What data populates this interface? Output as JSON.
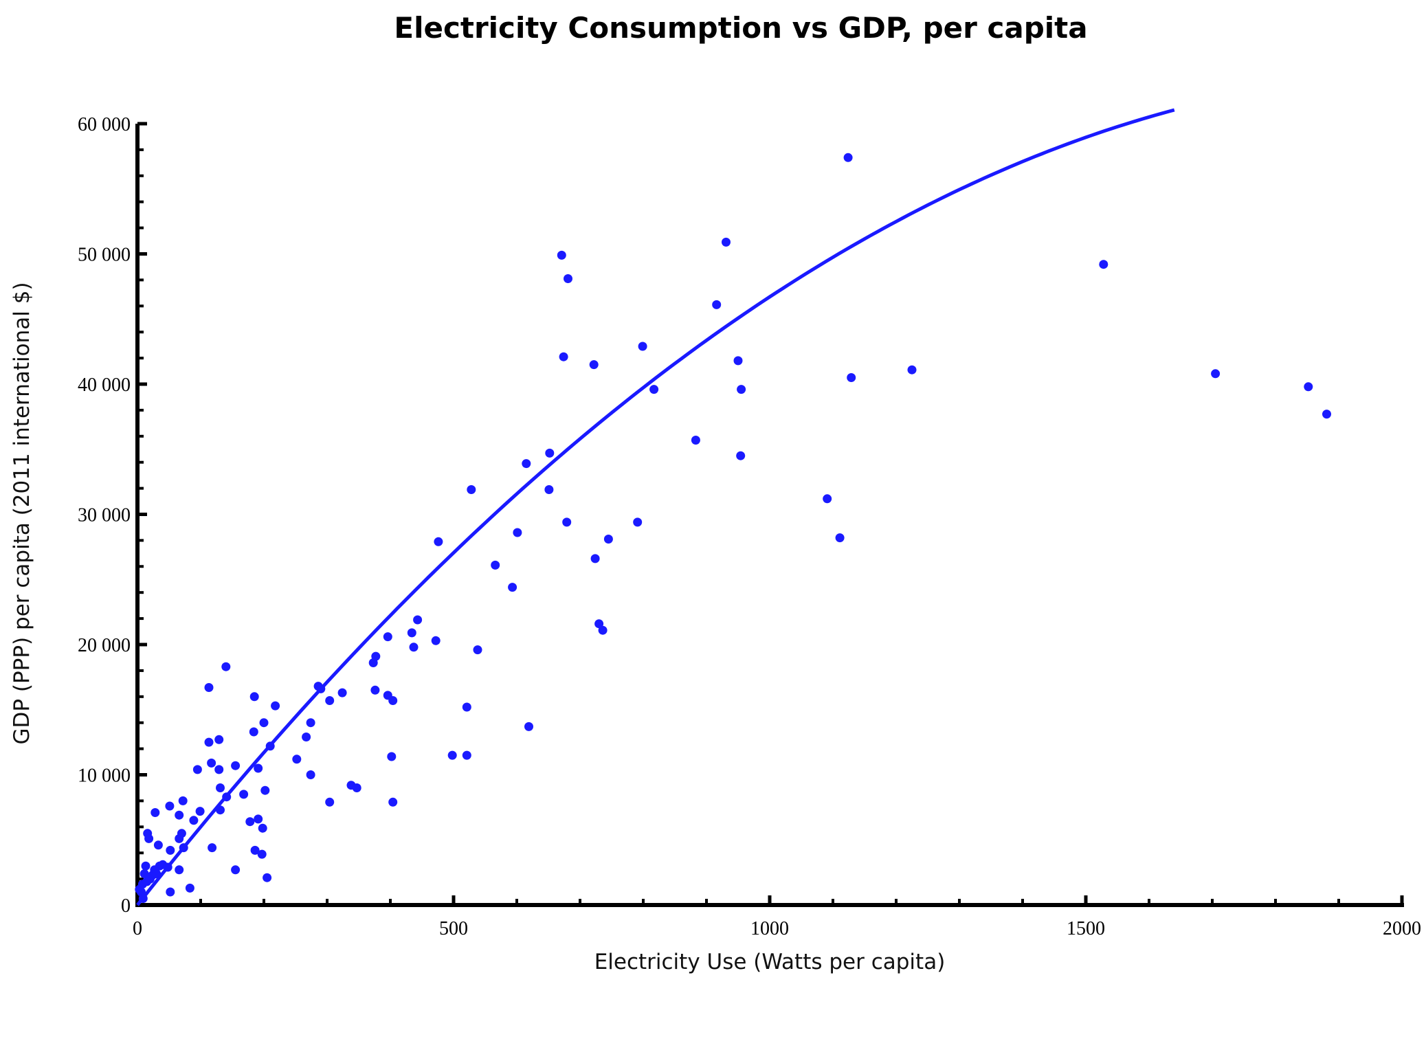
{
  "chart_data": {
    "type": "scatter",
    "title": "Electricity Consumption  vs GDP, per capita",
    "xlabel": "Electricity  Use (Watts per capita)",
    "ylabel": "GDP (PPP) per capita (2011 international $)",
    "xlim": [
      0,
      2000
    ],
    "ylim": [
      0,
      60000
    ],
    "x_ticks": [
      0,
      500,
      1000,
      1500,
      2000
    ],
    "x_tick_labels": [
      "0",
      "500",
      "1000",
      "1500",
      "2000"
    ],
    "x_minor_step": 100,
    "y_ticks": [
      0,
      10000,
      20000,
      30000,
      40000,
      50000,
      60000
    ],
    "y_tick_labels": [
      "0",
      "10 000",
      "20 000",
      "30 000",
      "40 000",
      "50 000",
      "60 000"
    ],
    "y_minor_step": 2000,
    "grid": false,
    "legend": "none",
    "colors": {
      "points": "#1a1aff",
      "fit": "#1a1aff",
      "axes": "#000000"
    },
    "fit_curve": {
      "name": "quadratic fit",
      "coefficients": {
        "a": 0,
        "b": 61.5,
        "c": -0.0148
      },
      "x_range": [
        0,
        1640
      ]
    },
    "series": [
      {
        "name": "countries",
        "points": [
          [
            1124,
            57400
          ],
          [
            671,
            49900
          ],
          [
            931,
            50900
          ],
          [
            681,
            48100
          ],
          [
            1528,
            49200
          ],
          [
            916,
            46100
          ],
          [
            799,
            42900
          ],
          [
            674,
            42100
          ],
          [
            722,
            41500
          ],
          [
            950,
            41800
          ],
          [
            1129,
            40500
          ],
          [
            1225,
            41100
          ],
          [
            817,
            39600
          ],
          [
            955,
            39600
          ],
          [
            1705,
            40800
          ],
          [
            1852,
            39800
          ],
          [
            1881,
            37700
          ],
          [
            883,
            35700
          ],
          [
            652,
            34700
          ],
          [
            954,
            34500
          ],
          [
            615,
            33900
          ],
          [
            528,
            31900
          ],
          [
            651,
            31900
          ],
          [
            1091,
            31200
          ],
          [
            679,
            29400
          ],
          [
            791,
            29400
          ],
          [
            1111,
            28200
          ],
          [
            476,
            27900
          ],
          [
            601,
            28600
          ],
          [
            745,
            28100
          ],
          [
            566,
            26100
          ],
          [
            724,
            26600
          ],
          [
            593,
            24400
          ],
          [
            730,
            21600
          ],
          [
            736,
            21100
          ],
          [
            443,
            21900
          ],
          [
            434,
            20900
          ],
          [
            396,
            20600
          ],
          [
            472,
            20300
          ],
          [
            437,
            19800
          ],
          [
            538,
            19600
          ],
          [
            373,
            18600
          ],
          [
            377,
            19100
          ],
          [
            140,
            18300
          ],
          [
            286,
            16800
          ],
          [
            290,
            16600
          ],
          [
            324,
            16300
          ],
          [
            376,
            16500
          ],
          [
            396,
            16100
          ],
          [
            404,
            15700
          ],
          [
            304,
            15700
          ],
          [
            113,
            16700
          ],
          [
            185,
            16000
          ],
          [
            218,
            15300
          ],
          [
            521,
            15200
          ],
          [
            274,
            14000
          ],
          [
            200,
            14000
          ],
          [
            184,
            13300
          ],
          [
            619,
            13700
          ],
          [
            129,
            12700
          ],
          [
            267,
            12900
          ],
          [
            113,
            12500
          ],
          [
            210,
            12200
          ],
          [
            252,
            11200
          ],
          [
            402,
            11400
          ],
          [
            498,
            11500
          ],
          [
            521,
            11500
          ],
          [
            117,
            10900
          ],
          [
            155,
            10700
          ],
          [
            95,
            10400
          ],
          [
            129,
            10400
          ],
          [
            191,
            10500
          ],
          [
            274,
            10000
          ],
          [
            131,
            9000
          ],
          [
            338,
            9200
          ],
          [
            347,
            9000
          ],
          [
            202,
            8800
          ],
          [
            168,
            8500
          ],
          [
            141,
            8300
          ],
          [
            304,
            7900
          ],
          [
            404,
            7900
          ],
          [
            72,
            8000
          ],
          [
            51,
            7600
          ],
          [
            28,
            7100
          ],
          [
            99,
            7200
          ],
          [
            131,
            7300
          ],
          [
            66,
            6900
          ],
          [
            89,
            6500
          ],
          [
            178,
            6400
          ],
          [
            191,
            6600
          ],
          [
            198,
            5900
          ],
          [
            16,
            5500
          ],
          [
            18,
            5100
          ],
          [
            70,
            5500
          ],
          [
            66,
            5100
          ],
          [
            33,
            4600
          ],
          [
            73,
            4400
          ],
          [
            118,
            4400
          ],
          [
            52,
            4200
          ],
          [
            186,
            4200
          ],
          [
            197,
            3900
          ],
          [
            35,
            3000
          ],
          [
            13,
            3000
          ],
          [
            27,
            2700
          ],
          [
            48,
            2900
          ],
          [
            66,
            2700
          ],
          [
            155,
            2700
          ],
          [
            205,
            2100
          ],
          [
            83,
            1300
          ],
          [
            52,
            1000
          ],
          [
            11,
            2400
          ],
          [
            20,
            2000
          ],
          [
            8,
            1600
          ],
          [
            6,
            1000
          ],
          [
            9,
            500
          ],
          [
            24,
            2300
          ],
          [
            30,
            2400
          ],
          [
            15,
            1800
          ],
          [
            40,
            3100
          ],
          [
            3,
            1200
          ]
        ]
      }
    ]
  }
}
